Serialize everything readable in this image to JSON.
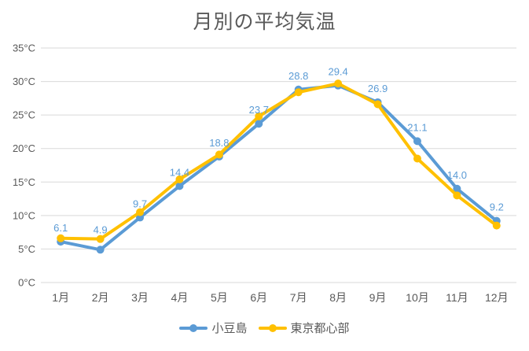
{
  "chart_data": {
    "type": "line",
    "title": "月別の平均気温",
    "categories": [
      "1月",
      "2月",
      "3月",
      "4月",
      "5月",
      "6月",
      "7月",
      "8月",
      "9月",
      "10月",
      "11月",
      "12月"
    ],
    "series": [
      {
        "name": "小豆島",
        "color": "#5B9BD5",
        "values": [
          6.1,
          4.9,
          9.7,
          14.4,
          18.8,
          23.7,
          28.8,
          29.4,
          26.9,
          21.1,
          14.0,
          9.2
        ],
        "data_labels": [
          "6.1",
          "4.9",
          "9.7",
          "14.4",
          "18.8",
          "23.7",
          "28.8",
          "29.4",
          "26.9",
          "21.1",
          "14.0",
          "9.2"
        ]
      },
      {
        "name": "東京都心部",
        "color": "#FFC000",
        "values": [
          6.6,
          6.5,
          10.5,
          15.4,
          19.1,
          24.8,
          28.4,
          29.7,
          26.6,
          18.5,
          13.0,
          8.5
        ],
        "data_labels": null
      }
    ],
    "xlabel": "",
    "ylabel": "",
    "ylim": [
      0,
      35
    ],
    "y_tick_step": 5,
    "y_tick_labels": [
      "0°C",
      "5°C",
      "10°C",
      "15°C",
      "20°C",
      "25°C",
      "30°C",
      "35°C"
    ],
    "grid": "horizontal",
    "gridline_color": "#D9D9D9",
    "axis_text_color": "#595959",
    "title_color": "#595959",
    "background_color": "#FFFFFF",
    "legend_position": "bottom"
  }
}
